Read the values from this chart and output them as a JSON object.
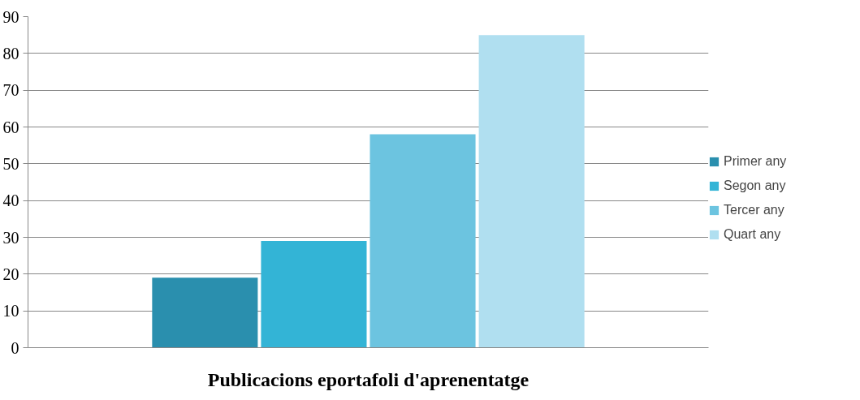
{
  "chart_data": {
    "type": "bar",
    "categories": [
      "Publicacions eportafoli d'aprenentatge"
    ],
    "series": [
      {
        "name": "Primer any",
        "color": "#2a8fae",
        "values": [
          19
        ]
      },
      {
        "name": "Segon any",
        "color": "#33b4d6",
        "values": [
          29
        ]
      },
      {
        "name": "Tercer any",
        "color": "#6cc4e0",
        "values": [
          58
        ]
      },
      {
        "name": "Quart any",
        "color": "#b0dff0",
        "values": [
          85
        ]
      }
    ],
    "ylim": [
      0,
      90
    ],
    "yticks": [
      0,
      10,
      20,
      30,
      40,
      50,
      60,
      70,
      80,
      90
    ],
    "grid": "y",
    "legend": "right"
  }
}
